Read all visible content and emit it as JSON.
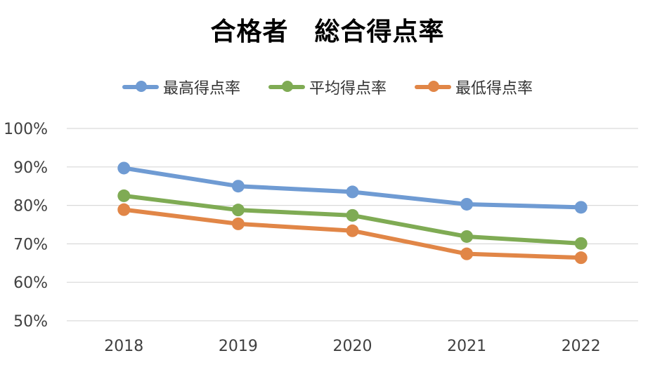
{
  "chart_data": {
    "type": "line",
    "title": "合格者　総合得点率",
    "categories": [
      "2018",
      "2019",
      "2020",
      "2021",
      "2022"
    ],
    "yticks": [
      "100%",
      "90%",
      "80%",
      "70%",
      "60%",
      "50%"
    ],
    "ylim": [
      50,
      100
    ],
    "grid": true,
    "legend_position": "top",
    "series": [
      {
        "name": "最高得点率",
        "color": "#6f9bd3",
        "values": [
          89.7,
          85.0,
          83.5,
          80.3,
          79.5
        ]
      },
      {
        "name": "平均得点率",
        "color": "#7fab54",
        "values": [
          82.5,
          78.8,
          77.4,
          71.9,
          70.1
        ]
      },
      {
        "name": "最低得点率",
        "color": "#e18647",
        "values": [
          78.9,
          75.2,
          73.4,
          67.4,
          66.4
        ]
      }
    ]
  }
}
